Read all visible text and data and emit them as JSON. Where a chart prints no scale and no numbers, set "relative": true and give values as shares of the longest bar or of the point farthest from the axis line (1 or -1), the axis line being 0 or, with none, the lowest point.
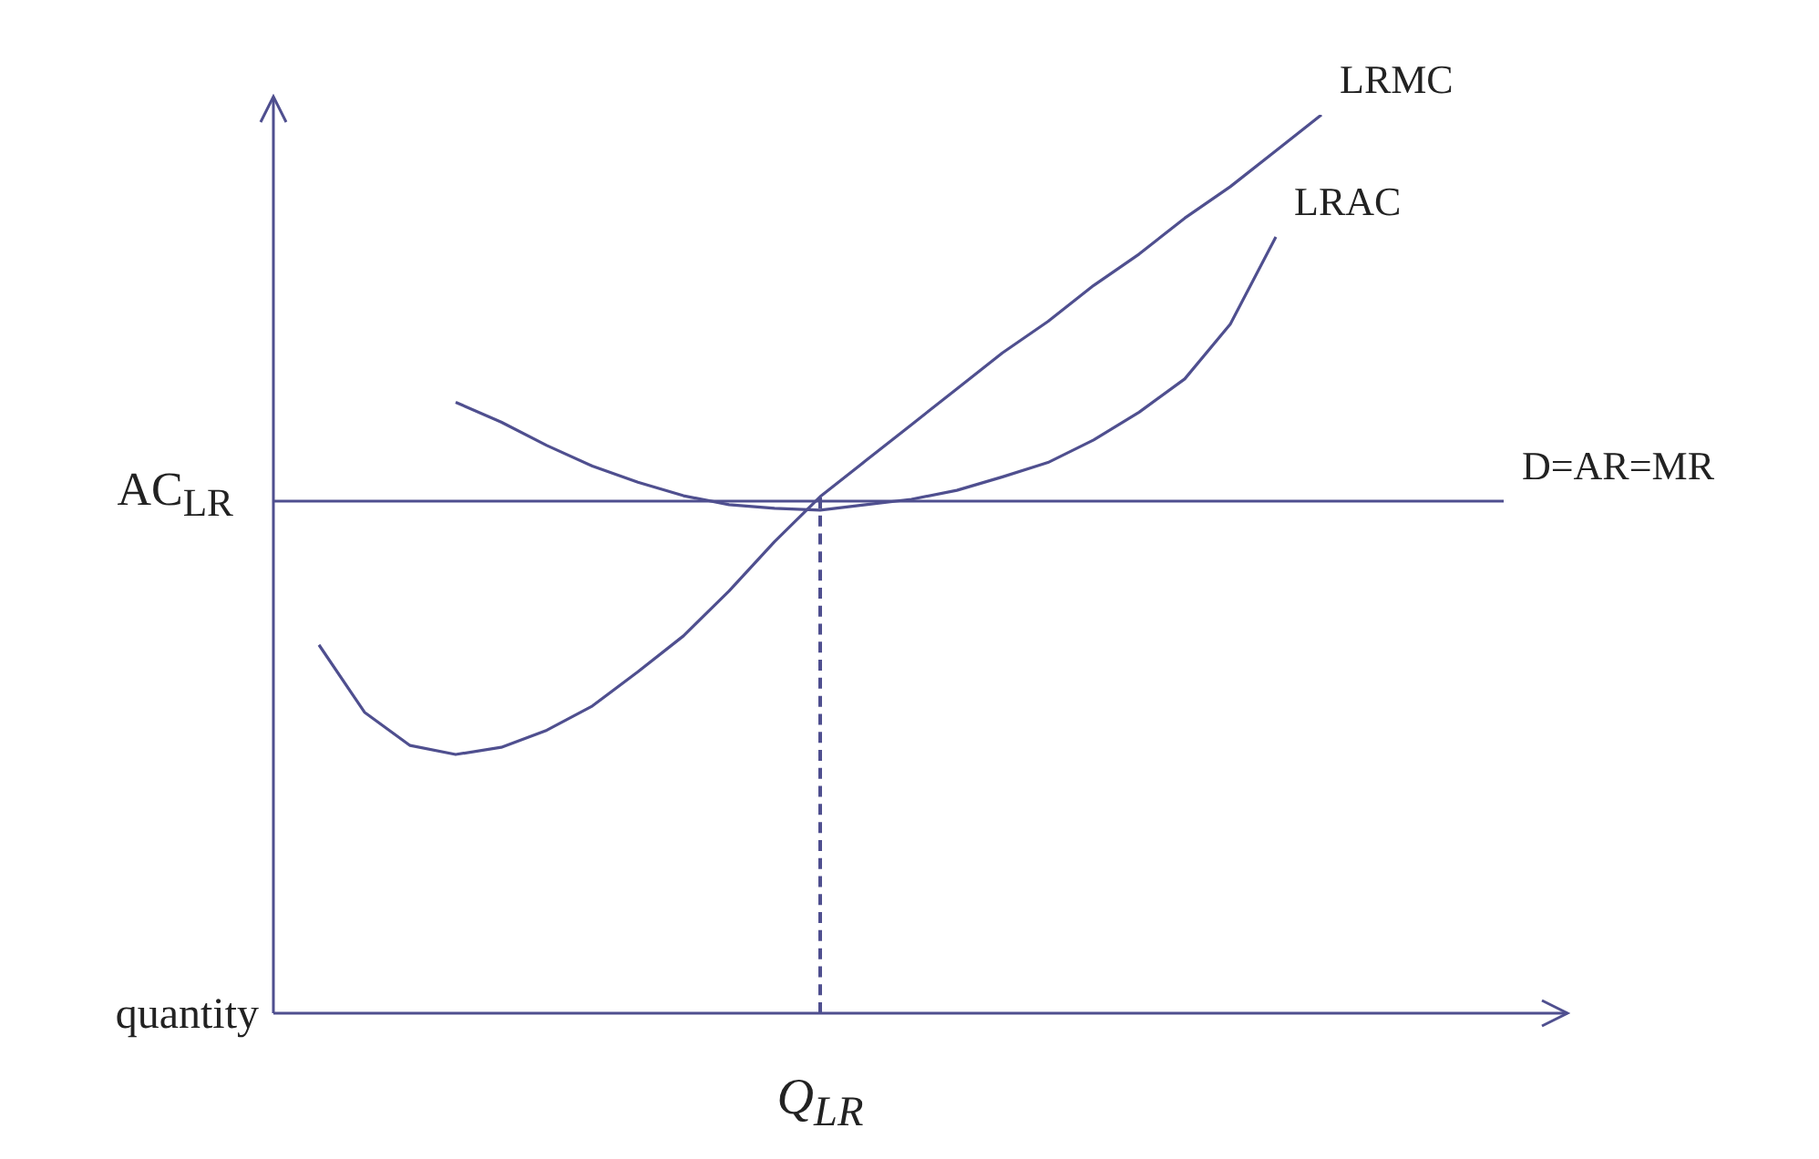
{
  "chart_data": {
    "type": "line",
    "relative": true,
    "categories": [
      null,
      null,
      null,
      null,
      null,
      null,
      null,
      null,
      null,
      null,
      null,
      null,
      null,
      null,
      null,
      null,
      null,
      null,
      null,
      null,
      null,
      null,
      null,
      null,
      null,
      null,
      null,
      null,
      null
    ],
    "series": [
      {
        "name": "LRMC",
        "color": "#4f4f8f",
        "values": [
          null,
          0.41,
          0.335,
          0.298,
          0.288,
          0.296,
          0.315,
          0.342,
          0.38,
          0.42,
          0.47,
          0.525,
          0.575,
          0.615,
          0.655,
          0.695,
          0.735,
          0.77,
          0.81,
          0.845,
          0.885,
          0.92,
          0.96,
          1,
          null,
          null,
          null,
          null,
          null
        ]
      },
      {
        "name": "LRAC",
        "color": "#4f4f8f",
        "values": [
          null,
          null,
          null,
          null,
          0.68,
          0.658,
          0.632,
          0.609,
          0.591,
          0.576,
          0.566,
          0.562,
          0.56,
          0.566,
          0.572,
          0.582,
          0.597,
          0.613,
          0.638,
          0.669,
          0.706,
          0.767,
          0.864,
          null,
          null,
          null,
          null,
          null,
          null
        ]
      },
      {
        "name": "D=AR=MR",
        "color": "#4f4f8f",
        "values": [
          0.57,
          0.57,
          0.57,
          0.57,
          0.57,
          0.57,
          0.57,
          0.57,
          0.57,
          0.57,
          0.57,
          0.57,
          0.57,
          0.57,
          0.57,
          0.57,
          0.57,
          0.57,
          0.57,
          0.57,
          0.57,
          0.57,
          0.57,
          0.57,
          0.57,
          0.57,
          0.57,
          0.57,
          null
        ]
      }
    ],
    "annotations": [
      "AC$_{LR}$",
      "Q$_{LR}$",
      "quantity"
    ]
  }
}
